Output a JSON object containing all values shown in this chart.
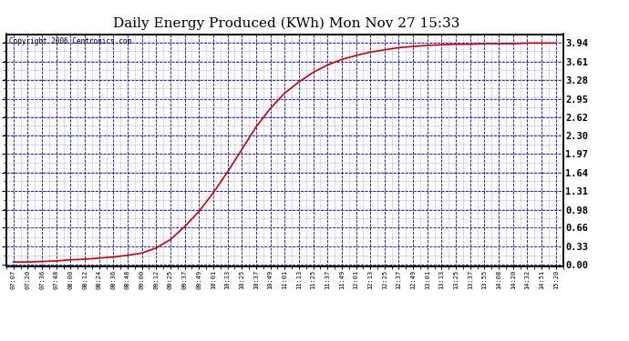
{
  "title": "Daily Energy Produced (KWh) Mon Nov 27 15:33",
  "title_fontsize": 11,
  "copyright_text": "Copyright 2006 Centronics.com",
  "background_color": "#ffffff",
  "plot_bg_color": "#ffffff",
  "line_color": "#cc0000",
  "grid_color": "#0000cc",
  "ylabel_right": [
    "3.94",
    "3.61",
    "3.28",
    "2.95",
    "2.62",
    "2.30",
    "1.97",
    "1.64",
    "1.31",
    "0.98",
    "0.66",
    "0.33",
    "0.00"
  ],
  "ytick_values": [
    3.94,
    3.61,
    3.28,
    2.95,
    2.62,
    2.3,
    1.97,
    1.64,
    1.31,
    0.98,
    0.66,
    0.33,
    0.0
  ],
  "ylim": [
    -0.02,
    4.1
  ],
  "x_labels": [
    "07:07",
    "07:20",
    "07:36",
    "07:48",
    "08:00",
    "08:12",
    "08:24",
    "08:36",
    "08:48",
    "09:00",
    "09:12",
    "09:25",
    "09:37",
    "09:49",
    "10:01",
    "10:13",
    "10:25",
    "10:37",
    "10:49",
    "11:01",
    "11:13",
    "11:25",
    "11:37",
    "11:49",
    "12:01",
    "12:13",
    "12:25",
    "12:37",
    "12:49",
    "13:01",
    "13:13",
    "13:25",
    "13:37",
    "13:55",
    "14:08",
    "14:20",
    "14:32",
    "14:51",
    "15:20"
  ],
  "curve_x": [
    0,
    1,
    2,
    3,
    4,
    5,
    6,
    7,
    8,
    9,
    10,
    11,
    12,
    13,
    14,
    15,
    16,
    17,
    18,
    19,
    20,
    21,
    22,
    23,
    24,
    25,
    26,
    27,
    28,
    29,
    30,
    31,
    32,
    33,
    34,
    35,
    36,
    37,
    38
  ],
  "curve_y": [
    0.05,
    0.05,
    0.06,
    0.07,
    0.09,
    0.1,
    0.12,
    0.14,
    0.17,
    0.21,
    0.3,
    0.45,
    0.68,
    0.95,
    1.28,
    1.65,
    2.05,
    2.45,
    2.78,
    3.05,
    3.25,
    3.42,
    3.55,
    3.65,
    3.72,
    3.78,
    3.82,
    3.86,
    3.88,
    3.9,
    3.91,
    3.92,
    3.92,
    3.93,
    3.93,
    3.93,
    3.94,
    3.94,
    3.94
  ]
}
